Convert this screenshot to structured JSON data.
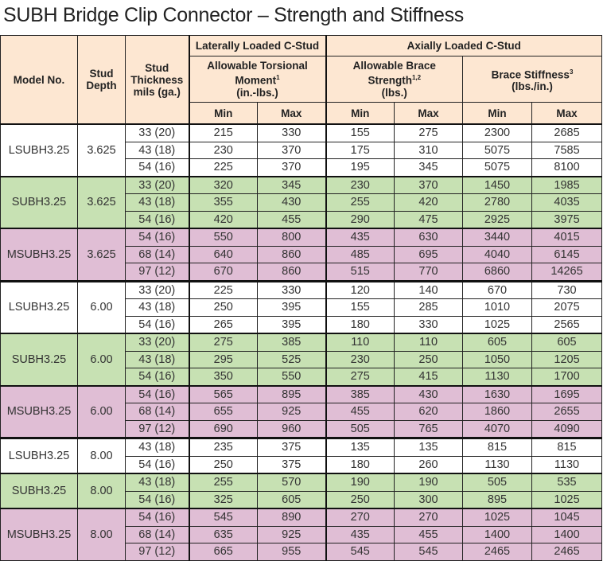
{
  "title": "SUBH Bridge Clip Connector – Strength and Stiffness",
  "headers": {
    "model": "Model No.",
    "depth": "Stud Depth",
    "thickness": "Stud Thickness mils (ga.)",
    "lateral": "Laterally Loaded C-Stud",
    "axial": "Axially Loaded C-Stud",
    "torsional": "Allowable Torsional Moment",
    "torsional_sup": "1",
    "torsional_unit": "(in.-lbs.)",
    "brace_strength": "Allowable Brace Strength",
    "brace_strength_sup": "1,2",
    "brace_strength_unit": "(lbs.)",
    "brace_stiffness": "Brace Stiffness",
    "brace_stiffness_sup": "3",
    "brace_stiffness_unit": "(lbs./in.)",
    "min": "Min",
    "max": "Max"
  },
  "colors": {
    "header": "#fde7d2",
    "L": "#ffffff",
    "S": "#c7e1b3",
    "M": "#e0bed5"
  },
  "groups": [
    {
      "type": "L",
      "model": "LSUBH3.25",
      "depth": "3.625",
      "rows": [
        [
          "33 (20)",
          "215",
          "330",
          "155",
          "275",
          "2300",
          "2685"
        ],
        [
          "43 (18)",
          "230",
          "370",
          "175",
          "310",
          "5075",
          "7585"
        ],
        [
          "54 (16)",
          "225",
          "370",
          "195",
          "345",
          "5075",
          "8100"
        ]
      ]
    },
    {
      "type": "S",
      "model": "SUBH3.25",
      "depth": "3.625",
      "rows": [
        [
          "33 (20)",
          "320",
          "345",
          "230",
          "370",
          "1450",
          "1985"
        ],
        [
          "43 (18)",
          "355",
          "430",
          "255",
          "420",
          "2780",
          "4035"
        ],
        [
          "54 (16)",
          "420",
          "455",
          "290",
          "475",
          "2925",
          "3975"
        ]
      ]
    },
    {
      "type": "M",
      "model": "MSUBH3.25",
      "depth": "3.625",
      "rows": [
        [
          "54 (16)",
          "550",
          "800",
          "435",
          "630",
          "3440",
          "4015"
        ],
        [
          "68 (14)",
          "640",
          "860",
          "485",
          "695",
          "4040",
          "6145"
        ],
        [
          "97 (12)",
          "670",
          "860",
          "515",
          "770",
          "6860",
          "14265"
        ]
      ]
    },
    {
      "type": "L",
      "model": "LSUBH3.25",
      "depth": "6.00",
      "rows": [
        [
          "33 (20)",
          "225",
          "330",
          "120",
          "140",
          "670",
          "730"
        ],
        [
          "43 (18)",
          "250",
          "395",
          "155",
          "285",
          "1010",
          "2075"
        ],
        [
          "54 (16)",
          "265",
          "395",
          "180",
          "330",
          "1025",
          "2565"
        ]
      ]
    },
    {
      "type": "S",
      "model": "SUBH3.25",
      "depth": "6.00",
      "rows": [
        [
          "33 (20)",
          "275",
          "385",
          "110",
          "110",
          "605",
          "605"
        ],
        [
          "43 (18)",
          "295",
          "525",
          "230",
          "250",
          "1050",
          "1205"
        ],
        [
          "54 (16)",
          "350",
          "550",
          "275",
          "415",
          "1130",
          "1700"
        ]
      ]
    },
    {
      "type": "M",
      "model": "MSUBH3.25",
      "depth": "6.00",
      "rows": [
        [
          "54 (16)",
          "565",
          "895",
          "385",
          "430",
          "1630",
          "1695"
        ],
        [
          "68 (14)",
          "655",
          "925",
          "455",
          "620",
          "1860",
          "2655"
        ],
        [
          "97 (12)",
          "690",
          "960",
          "505",
          "765",
          "4070",
          "4090"
        ]
      ]
    },
    {
      "type": "L",
      "model": "LSUBH3.25",
      "depth": "8.00",
      "rows": [
        [
          "43 (18)",
          "235",
          "375",
          "135",
          "135",
          "815",
          "815"
        ],
        [
          "54 (16)",
          "250",
          "375",
          "180",
          "260",
          "1130",
          "1130"
        ]
      ]
    },
    {
      "type": "S",
      "model": "SUBH3.25",
      "depth": "8.00",
      "rows": [
        [
          "43 (18)",
          "255",
          "570",
          "190",
          "190",
          "505",
          "535"
        ],
        [
          "54 (16)",
          "325",
          "605",
          "250",
          "300",
          "895",
          "1025"
        ]
      ]
    },
    {
      "type": "M",
      "model": "MSUBH3.25",
      "depth": "8.00",
      "rows": [
        [
          "54 (16)",
          "545",
          "890",
          "270",
          "270",
          "1025",
          "1045"
        ],
        [
          "68 (14)",
          "635",
          "925",
          "435",
          "455",
          "1400",
          "1400"
        ],
        [
          "97 (12)",
          "665",
          "955",
          "545",
          "545",
          "2465",
          "2465"
        ]
      ]
    }
  ]
}
